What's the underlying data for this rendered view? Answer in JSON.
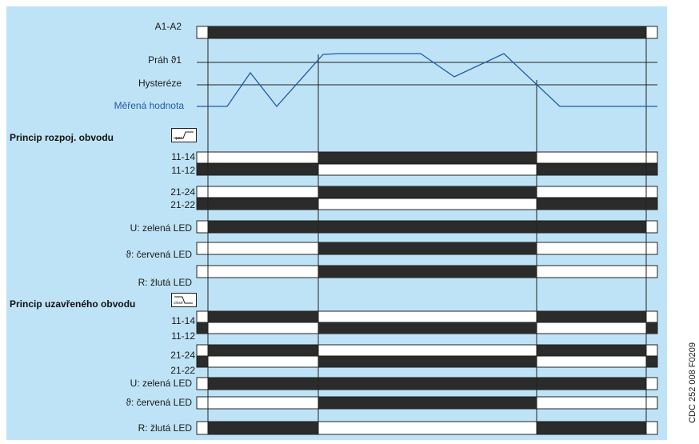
{
  "labels": {
    "a1a2": "A1-A2",
    "prah": "Práh ϑ1",
    "hystereze": "Hysteréze",
    "merena": "Měřená hodnota",
    "sec1_title": "Princip rozpoj. obvodu",
    "sec1_icon": "open",
    "s1_1114": "11-14",
    "s1_1112": "11-12",
    "s1_2124": "21-24",
    "s1_2122": "21-22",
    "s1_u": "U:  zelená LED",
    "s1_t": "ϑ: červená LED",
    "s1_r": "R: žlutá LED",
    "sec2_title": "Princip uzavřeného obvodu",
    "sec2_icon": "close",
    "s2_1114": "11-14",
    "s2_1112": "11-12",
    "s2_2124": "21-24",
    "s2_2122": "21-22",
    "s2_u": "U:  zelená LED",
    "s2_t": "ϑ: červená LED",
    "s2_r": "R: žlutá LED"
  },
  "figure_code": "CDC 252 008 F0209",
  "colors": {
    "background": "#bfe3f6",
    "bar_on": "#2b2b2b",
    "bar_off": "#ffffff",
    "measured": "#1f5aa8",
    "line": "#222222"
  }
}
